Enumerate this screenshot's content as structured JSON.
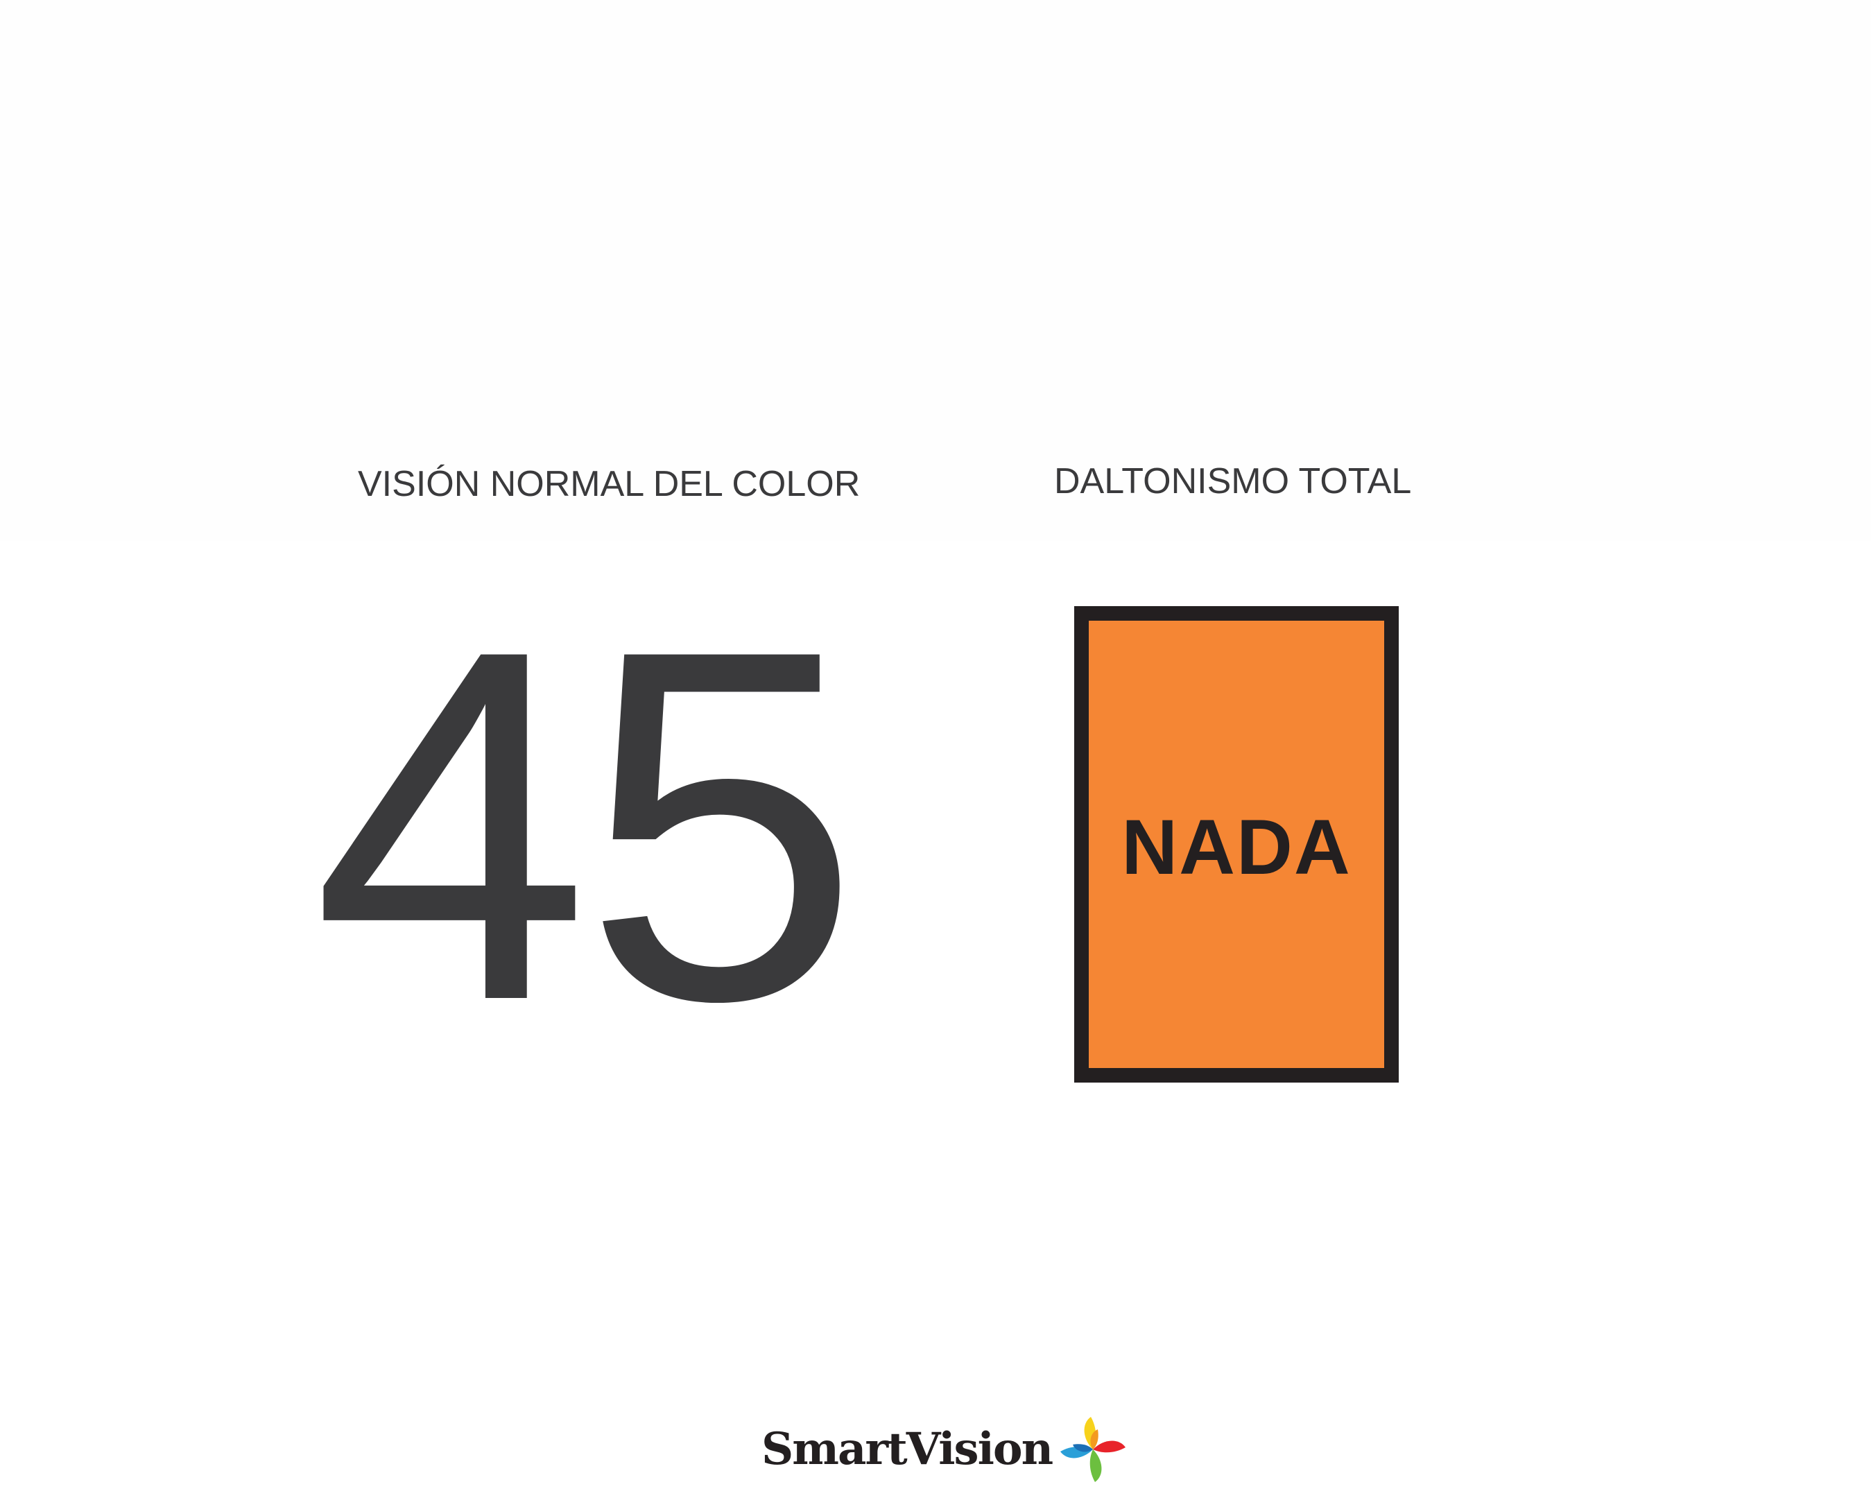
{
  "headings": {
    "left": "VISIÓN NORMAL DEL COLOR",
    "right": "DALTONISMO TOTAL"
  },
  "plate_number": "45",
  "card": {
    "label": "NADA"
  },
  "logo": {
    "text": "SmartVision",
    "icon": "pinwheel-logo-icon"
  },
  "colors": {
    "number": "#3a3a3c",
    "card_fill": "#f58634",
    "card_border": "#231f20",
    "background": "#ffffff"
  }
}
